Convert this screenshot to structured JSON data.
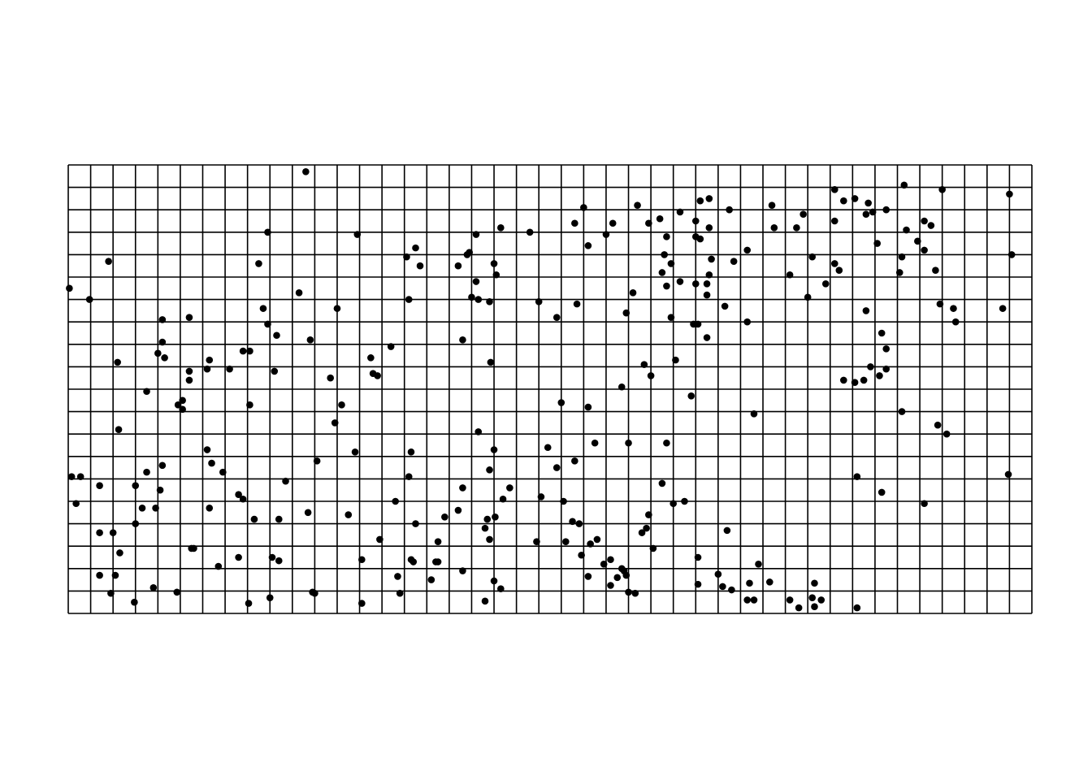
{
  "chart_data": {
    "type": "scatter",
    "title": "",
    "xlabel": "",
    "ylabel": "",
    "axes_visible": false,
    "grid": true,
    "grid_columns": 43,
    "grid_rows": 20,
    "xlim": [
      0,
      43
    ],
    "ylim": [
      0,
      20
    ],
    "point_color": "#000000",
    "grid_color": "#000000",
    "points": [
      [
        0.05,
        14.5
      ],
      [
        0.15,
        6.1
      ],
      [
        0.35,
        4.9
      ],
      [
        0.55,
        6.1
      ],
      [
        0.95,
        14.0
      ],
      [
        1.8,
        15.7
      ],
      [
        2.2,
        11.2
      ],
      [
        2.25,
        8.2
      ],
      [
        2.0,
        3.6
      ],
      [
        2.3,
        2.7
      ],
      [
        2.1,
        1.7
      ],
      [
        3.5,
        9.9
      ],
      [
        3.0,
        5.7
      ],
      [
        4.2,
        13.1
      ],
      [
        4.2,
        12.1
      ],
      [
        4.0,
        11.6
      ],
      [
        4.3,
        11.4
      ],
      [
        5.4,
        13.2
      ],
      [
        5.4,
        10.8
      ],
      [
        4.9,
        9.3
      ],
      [
        5.1,
        9.5
      ],
      [
        5.1,
        9.1
      ],
      [
        3.5,
        6.3
      ],
      [
        3.0,
        4.0
      ],
      [
        3.3,
        4.7
      ],
      [
        3.9,
        4.7
      ],
      [
        4.1,
        5.5
      ],
      [
        4.2,
        6.6
      ],
      [
        1.4,
        5.7
      ],
      [
        1.4,
        3.6
      ],
      [
        1.4,
        1.7
      ],
      [
        1.9,
        0.9
      ],
      [
        2.95,
        0.5
      ],
      [
        3.8,
        1.15
      ],
      [
        4.85,
        0.95
      ],
      [
        5.5,
        2.9
      ],
      [
        10.6,
        19.7
      ],
      [
        8.9,
        17.0
      ],
      [
        8.5,
        15.6
      ],
      [
        8.7,
        13.6
      ],
      [
        8.9,
        12.9
      ],
      [
        9.3,
        12.4
      ],
      [
        9.2,
        10.8
      ],
      [
        6.3,
        11.3
      ],
      [
        5.4,
        10.4
      ],
      [
        6.2,
        10.9
      ],
      [
        7.2,
        10.9
      ],
      [
        8.1,
        11.7
      ],
      [
        8.1,
        9.3
      ],
      [
        7.8,
        11.7
      ],
      [
        6.2,
        7.3
      ],
      [
        6.4,
        6.7
      ],
      [
        6.9,
        6.3
      ],
      [
        7.6,
        5.3
      ],
      [
        7.8,
        5.1
      ],
      [
        8.3,
        4.2
      ],
      [
        9.7,
        5.9
      ],
      [
        9.4,
        4.2
      ],
      [
        6.3,
        4.7
      ],
      [
        5.6,
        2.9
      ],
      [
        6.7,
        2.1
      ],
      [
        7.6,
        2.5
      ],
      [
        9.1,
        2.5
      ],
      [
        9.4,
        2.35
      ],
      [
        8.05,
        0.45
      ],
      [
        9.0,
        0.7
      ],
      [
        10.3,
        14.3
      ],
      [
        10.8,
        12.2
      ],
      [
        10.7,
        4.5
      ],
      [
        11.1,
        6.8
      ],
      [
        12.0,
        13.6
      ],
      [
        12.9,
        16.9
      ],
      [
        11.7,
        10.5
      ],
      [
        11.9,
        8.5
      ],
      [
        12.2,
        9.3
      ],
      [
        12.5,
        4.4
      ],
      [
        12.8,
        7.2
      ],
      [
        13.1,
        2.4
      ],
      [
        13.5,
        11.4
      ],
      [
        13.8,
        10.6
      ],
      [
        13.6,
        10.7
      ],
      [
        13.9,
        3.3
      ],
      [
        14.4,
        11.9
      ],
      [
        14.6,
        5.0
      ],
      [
        15.1,
        15.9
      ],
      [
        15.5,
        16.3
      ],
      [
        15.7,
        15.5
      ],
      [
        15.2,
        14.0
      ],
      [
        15.3,
        7.2
      ],
      [
        15.2,
        6.1
      ],
      [
        13.1,
        0.45
      ],
      [
        11.0,
        0.9
      ],
      [
        10.9,
        0.95
      ],
      [
        14.7,
        1.65
      ],
      [
        14.8,
        0.9
      ],
      [
        15.3,
        2.4
      ],
      [
        15.4,
        2.3
      ],
      [
        15.5,
        4.0
      ],
      [
        16.5,
        2.3
      ],
      [
        17.4,
        15.5
      ],
      [
        17.8,
        16.0
      ],
      [
        18.2,
        14.8
      ],
      [
        18.0,
        14.1
      ],
      [
        18.8,
        13.9
      ],
      [
        19.0,
        15.6
      ],
      [
        19.1,
        15.1
      ],
      [
        19.3,
        17.2
      ],
      [
        18.3,
        14.0
      ],
      [
        17.9,
        16.1
      ],
      [
        18.2,
        16.9
      ],
      [
        17.6,
        12.2
      ],
      [
        18.3,
        8.1
      ],
      [
        18.85,
        11.2
      ],
      [
        19.0,
        7.3
      ],
      [
        18.8,
        6.4
      ],
      [
        19.4,
        5.1
      ],
      [
        19.05,
        4.3
      ],
      [
        18.7,
        4.2
      ],
      [
        18.6,
        3.8
      ],
      [
        18.8,
        3.3
      ],
      [
        17.4,
        4.6
      ],
      [
        17.6,
        5.6
      ],
      [
        16.8,
        4.3
      ],
      [
        16.5,
        3.2
      ],
      [
        16.4,
        2.3
      ],
      [
        16.2,
        1.5
      ],
      [
        17.6,
        1.9
      ],
      [
        18.6,
        0.55
      ],
      [
        19.3,
        1.1
      ],
      [
        19.0,
        1.45
      ],
      [
        19.7,
        5.6
      ],
      [
        20.6,
        17.0
      ],
      [
        21.0,
        13.9
      ],
      [
        21.8,
        13.2
      ],
      [
        22.6,
        17.4
      ],
      [
        22.7,
        13.8
      ],
      [
        23.0,
        18.1
      ],
      [
        23.2,
        16.4
      ],
      [
        23.2,
        9.2
      ],
      [
        23.5,
        7.6
      ],
      [
        24.0,
        16.9
      ],
      [
        24.3,
        17.4
      ],
      [
        22.0,
        9.4
      ],
      [
        21.4,
        7.4
      ],
      [
        21.8,
        6.5
      ],
      [
        21.1,
        5.2
      ],
      [
        20.9,
        3.2
      ],
      [
        22.1,
        5.0
      ],
      [
        22.6,
        6.8
      ],
      [
        22.2,
        3.2
      ],
      [
        22.8,
        4.0
      ],
      [
        22.5,
        4.1
      ],
      [
        22.9,
        2.6
      ],
      [
        23.3,
        3.1
      ],
      [
        23.6,
        3.3
      ],
      [
        23.2,
        1.65
      ],
      [
        23.9,
        2.2
      ],
      [
        24.7,
        2.0
      ],
      [
        24.9,
        1.7
      ],
      [
        24.2,
        2.4
      ],
      [
        24.8,
        1.9
      ],
      [
        24.2,
        1.25
      ],
      [
        25.3,
        0.9
      ],
      [
        24.5,
        1.6
      ],
      [
        25.0,
        0.95
      ],
      [
        25.8,
        3.8
      ],
      [
        26.1,
        2.9
      ],
      [
        26.4,
        17.6
      ],
      [
        26.5,
        15.2
      ],
      [
        26.7,
        16.8
      ],
      [
        26.7,
        14.6
      ],
      [
        26.6,
        16.0
      ],
      [
        25.7,
        11.1
      ],
      [
        26.9,
        15.6
      ],
      [
        25.4,
        18.2
      ],
      [
        25.9,
        17.4
      ],
      [
        25.2,
        14.3
      ],
      [
        24.9,
        13.4
      ],
      [
        25.0,
        7.6
      ],
      [
        24.7,
        10.1
      ],
      [
        28.0,
        17.5
      ],
      [
        28.2,
        18.4
      ],
      [
        27.3,
        17.9
      ],
      [
        26.9,
        13.2
      ],
      [
        27.1,
        11.3
      ],
      [
        28.6,
        15.1
      ],
      [
        28.5,
        14.2
      ],
      [
        28.0,
        14.7
      ],
      [
        28.1,
        12.9
      ],
      [
        27.9,
        12.9
      ],
      [
        28.2,
        16.7
      ],
      [
        28.0,
        16.8
      ],
      [
        28.6,
        18.5
      ],
      [
        28.6,
        17.2
      ],
      [
        27.8,
        9.7
      ],
      [
        28.5,
        12.3
      ],
      [
        28.7,
        15.8
      ],
      [
        27.3,
        14.8
      ],
      [
        28.5,
        14.7
      ],
      [
        26.5,
        5.8
      ],
      [
        26.0,
        10.6
      ],
      [
        25.6,
        3.6
      ],
      [
        25.9,
        4.4
      ],
      [
        26.7,
        7.6
      ],
      [
        27.0,
        4.9
      ],
      [
        27.5,
        5.0
      ],
      [
        28.1,
        2.5
      ],
      [
        28.1,
        1.3
      ],
      [
        29.3,
        13.7
      ],
      [
        29.5,
        18.0
      ],
      [
        29.7,
        15.7
      ],
      [
        29.4,
        3.7
      ],
      [
        29.0,
        1.75
      ],
      [
        29.2,
        1.2
      ],
      [
        29.6,
        1.05
      ],
      [
        30.3,
        16.2
      ],
      [
        30.3,
        13.0
      ],
      [
        30.6,
        8.9
      ],
      [
        31.4,
        18.2
      ],
      [
        31.5,
        17.2
      ],
      [
        30.8,
        2.2
      ],
      [
        32.2,
        15.1
      ],
      [
        32.5,
        17.2
      ],
      [
        33.2,
        15.9
      ],
      [
        33.0,
        14.1
      ],
      [
        32.8,
        17.8
      ],
      [
        34.2,
        15.6
      ],
      [
        33.8,
        14.7
      ],
      [
        34.2,
        18.9
      ],
      [
        34.2,
        17.5
      ],
      [
        34.4,
        15.3
      ],
      [
        33.3,
        1.35
      ],
      [
        33.6,
        0.6
      ],
      [
        34.6,
        10.4
      ],
      [
        35.5,
        10.4
      ],
      [
        34.6,
        18.4
      ],
      [
        35.6,
        17.8
      ],
      [
        35.1,
        18.5
      ],
      [
        35.7,
        18.3
      ],
      [
        35.9,
        17.9
      ],
      [
        36.1,
        16.5
      ],
      [
        35.6,
        13.5
      ],
      [
        36.3,
        12.5
      ],
      [
        36.5,
        11.8
      ],
      [
        36.2,
        10.6
      ],
      [
        35.1,
        10.3
      ],
      [
        35.8,
        11.0
      ],
      [
        36.5,
        18.0
      ],
      [
        36.5,
        10.9
      ],
      [
        37.2,
        15.9
      ],
      [
        37.4,
        17.1
      ],
      [
        37.1,
        15.2
      ],
      [
        37.9,
        16.6
      ],
      [
        38.2,
        17.5
      ],
      [
        38.2,
        16.2
      ],
      [
        39.0,
        18.9
      ],
      [
        39.5,
        13.6
      ],
      [
        38.8,
        8.4
      ],
      [
        38.5,
        17.3
      ],
      [
        37.3,
        19.1
      ],
      [
        38.7,
        15.3
      ],
      [
        37.2,
        9.0
      ],
      [
        36.3,
        5.4
      ],
      [
        35.2,
        6.1
      ],
      [
        35.2,
        0.25
      ],
      [
        38.9,
        13.8
      ],
      [
        39.6,
        13.0
      ],
      [
        42.0,
        18.7
      ],
      [
        42.1,
        16.0
      ],
      [
        41.7,
        13.6
      ],
      [
        41.95,
        6.2
      ],
      [
        38.2,
        4.9
      ],
      [
        39.2,
        8.0
      ],
      [
        30.4,
        1.35
      ],
      [
        30.3,
        0.6
      ],
      [
        31.3,
        1.4
      ],
      [
        30.6,
        0.6
      ],
      [
        32.2,
        0.6
      ],
      [
        33.3,
        0.3
      ],
      [
        33.2,
        0.7
      ],
      [
        32.6,
        0.25
      ]
    ]
  }
}
